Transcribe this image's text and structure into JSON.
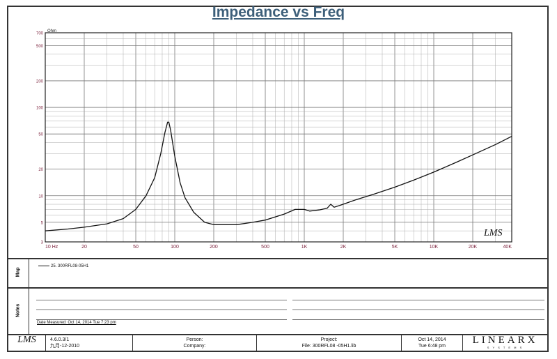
{
  "chart_data": {
    "type": "line",
    "title": "Impedance vs Freq",
    "yunit": "Ohm",
    "xscale": "log",
    "yscale": "log",
    "xlim": [
      10,
      40000
    ],
    "ylim": [
      3,
      700
    ],
    "x_ticks": [
      {
        "v": 10,
        "label": "10 Hz"
      },
      {
        "v": 20,
        "label": "20"
      },
      {
        "v": 50,
        "label": "50"
      },
      {
        "v": 100,
        "label": "100"
      },
      {
        "v": 200,
        "label": "200"
      },
      {
        "v": 500,
        "label": "500"
      },
      {
        "v": 1000,
        "label": "1K"
      },
      {
        "v": 2000,
        "label": "2K"
      },
      {
        "v": 5000,
        "label": "5K"
      },
      {
        "v": 10000,
        "label": "10K"
      },
      {
        "v": 20000,
        "label": "20K"
      },
      {
        "v": 40000,
        "label": "40K"
      }
    ],
    "y_ticks": [
      {
        "v": 3,
        "label": "3"
      },
      {
        "v": 5,
        "label": "5"
      },
      {
        "v": 10,
        "label": "10"
      },
      {
        "v": 20,
        "label": "20"
      },
      {
        "v": 50,
        "label": "50"
      },
      {
        "v": 100,
        "label": "100"
      },
      {
        "v": 200,
        "label": "200"
      },
      {
        "v": 500,
        "label": "500"
      },
      {
        "v": 700,
        "label": "700"
      }
    ],
    "grid": true,
    "series": [
      {
        "name": "25. 300RFL08-05H1",
        "color": "#111111",
        "points": [
          [
            10,
            4.0
          ],
          [
            15,
            4.2
          ],
          [
            20,
            4.4
          ],
          [
            30,
            4.8
          ],
          [
            40,
            5.5
          ],
          [
            50,
            7.0
          ],
          [
            60,
            10.0
          ],
          [
            70,
            16.0
          ],
          [
            78,
            30.0
          ],
          [
            84,
            52.0
          ],
          [
            88,
            68.0
          ],
          [
            90,
            68.0
          ],
          [
            93,
            55.0
          ],
          [
            100,
            28.0
          ],
          [
            110,
            14.0
          ],
          [
            120,
            9.5
          ],
          [
            140,
            6.5
          ],
          [
            170,
            5.0
          ],
          [
            200,
            4.7
          ],
          [
            300,
            4.7
          ],
          [
            400,
            5.0
          ],
          [
            500,
            5.3
          ],
          [
            700,
            6.2
          ],
          [
            850,
            7.0
          ],
          [
            1000,
            7.0
          ],
          [
            1100,
            6.7
          ],
          [
            1300,
            6.9
          ],
          [
            1500,
            7.2
          ],
          [
            1600,
            8.0
          ],
          [
            1700,
            7.4
          ],
          [
            1900,
            7.8
          ],
          [
            2500,
            9.0
          ],
          [
            3500,
            10.5
          ],
          [
            5000,
            12.5
          ],
          [
            7000,
            15.0
          ],
          [
            10000,
            18.5
          ],
          [
            15000,
            24.0
          ],
          [
            20000,
            29.0
          ],
          [
            30000,
            38.0
          ],
          [
            40000,
            47.0
          ]
        ]
      }
    ]
  },
  "watermark": "LMS",
  "map_label": "Map",
  "legend_entry": "25. 300RFL08-05H1",
  "notes_label": "Notes",
  "date_measured": "Date Measured: Oct 14, 2014  Tue  7:23 pm",
  "footer": {
    "logo": "LMS",
    "version": "4.6.0.3/1",
    "version_sub": "九月-12-2010",
    "person_label": "Person:",
    "company_label": "Company:",
    "project_label": "Project:",
    "file_label": "File: 300RFL08 -05H1.lib",
    "date_line1": "Oct 14, 2014",
    "date_line2": "Tue  6:48 pm",
    "brand": "LINEARX",
    "brand_sub": "S Y S T E M S"
  }
}
